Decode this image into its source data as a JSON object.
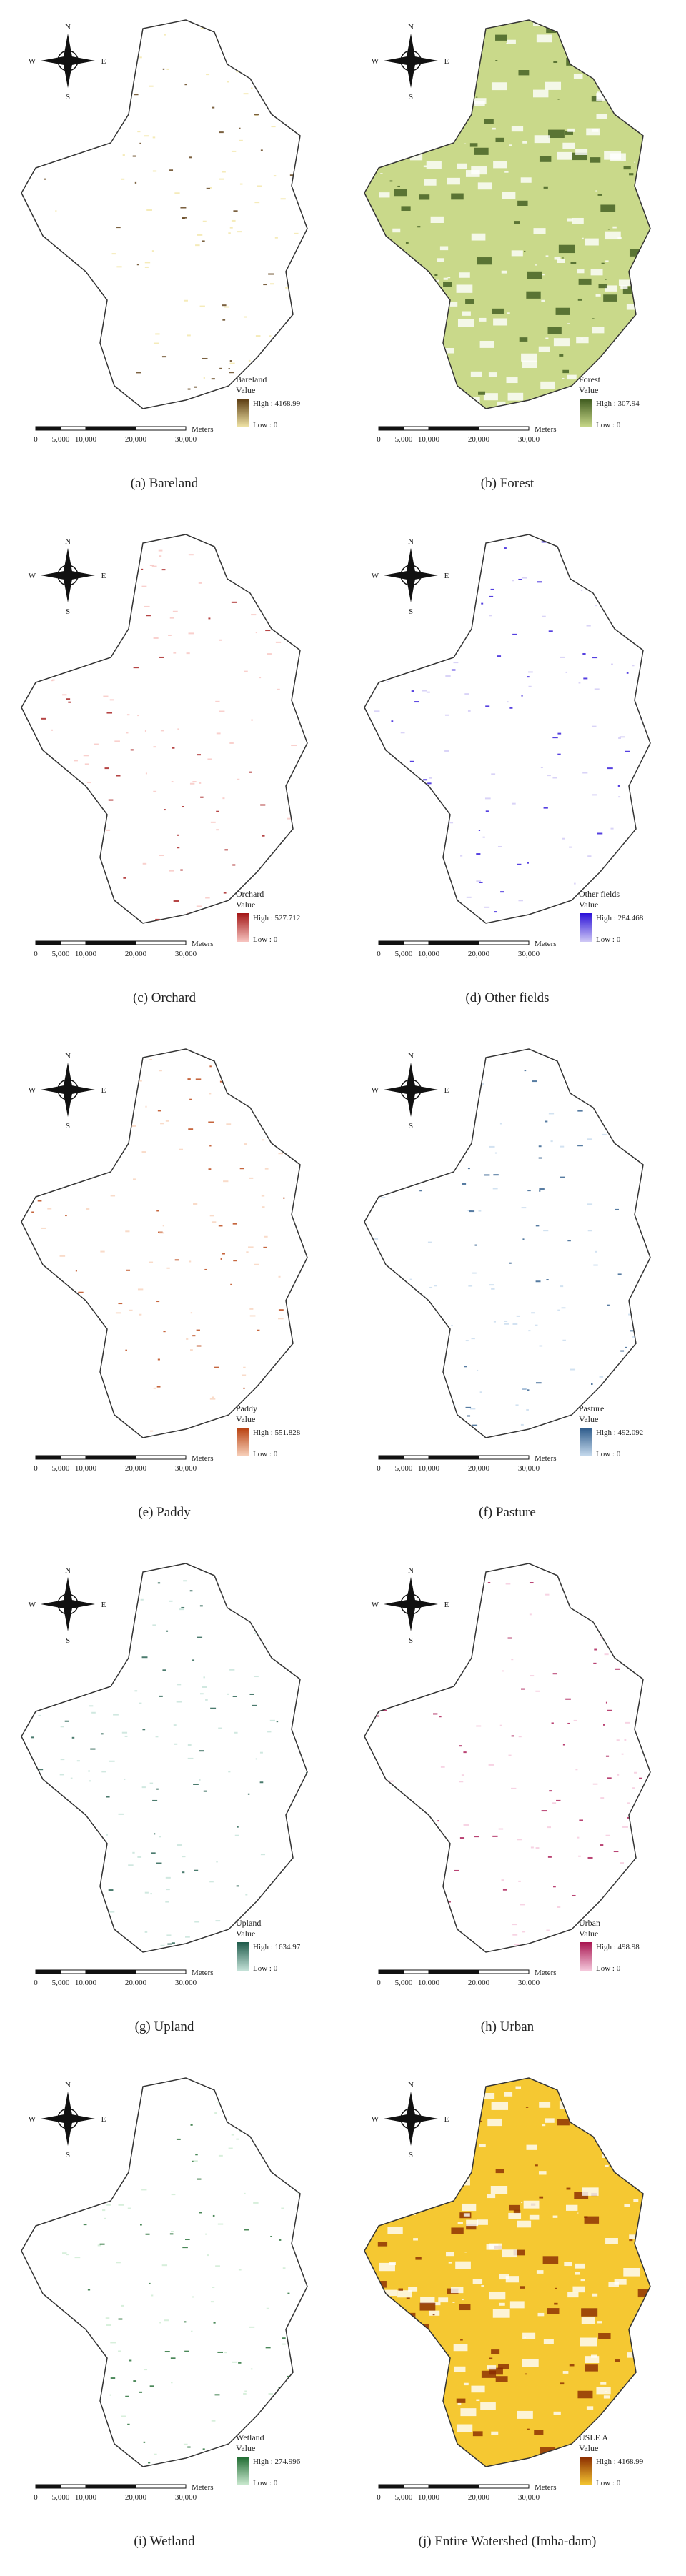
{
  "compass": {
    "n": "N",
    "s": "S",
    "w": "W",
    "e": "E"
  },
  "scale_bar": {
    "labels": [
      "0",
      "5,000",
      "10,000",
      "20,000",
      "30,000"
    ],
    "unit": "Meters"
  },
  "legend_value_label": "Value",
  "panels": [
    {
      "caption": "(a)  Bareland",
      "legend_title": "Bareland",
      "high": "High : 4168.99",
      "low": "Low : 0",
      "color_high": "#5a3a10",
      "color_low": "#f2e6a8",
      "filled": false
    },
    {
      "caption": "(b)  Forest",
      "legend_title": "Forest",
      "high": "High : 307.94",
      "low": "Low : 0",
      "color_high": "#3e5a1e",
      "color_low": "#c9d98a",
      "filled": true
    },
    {
      "caption": "(c)  Orchard",
      "legend_title": "Orchard",
      "high": "High : 527.712",
      "low": "Low : 0",
      "color_high": "#a31515",
      "color_low": "#f7c4c0",
      "filled": false
    },
    {
      "caption": "(d)  Other fields",
      "legend_title": "Other fields",
      "high": "High : 284.468",
      "low": "Low : 0",
      "color_high": "#2a10d8",
      "color_low": "#cfc8f5",
      "filled": false
    },
    {
      "caption": "(e)  Paddy",
      "legend_title": "Paddy",
      "high": "High : 551.828",
      "low": "Low : 0",
      "color_high": "#b8400e",
      "color_low": "#f8d2bc",
      "filled": false
    },
    {
      "caption": "(f)  Pasture",
      "legend_title": "Pasture",
      "high": "High : 492.092",
      "low": "Low : 0",
      "color_high": "#2c5a8a",
      "color_low": "#c7dbee",
      "filled": false
    },
    {
      "caption": "(g)  Upland",
      "legend_title": "Upland",
      "high": "High : 1634.97",
      "low": "Low : 0",
      "color_high": "#1e5a4a",
      "color_low": "#c4e2d8",
      "filled": false
    },
    {
      "caption": "(h)  Urban",
      "legend_title": "Urban",
      "high": "High : 498.98",
      "low": "Low : 0",
      "color_high": "#a81450",
      "color_low": "#f5c8dc",
      "filled": false
    },
    {
      "caption": "(i)  Wetland",
      "legend_title": "Wetland",
      "high": "High : 274.996",
      "low": "Low : 0",
      "color_high": "#1e6a30",
      "color_low": "#cdebd2",
      "filled": false
    },
    {
      "caption": "(j)  Entire Watershed (Imha-dam)",
      "legend_title": "USLE A",
      "high": "High : 4168.99",
      "low": "Low : 0",
      "color_high": "#8a2a00",
      "color_low": "#f5c832",
      "filled": true
    }
  ]
}
